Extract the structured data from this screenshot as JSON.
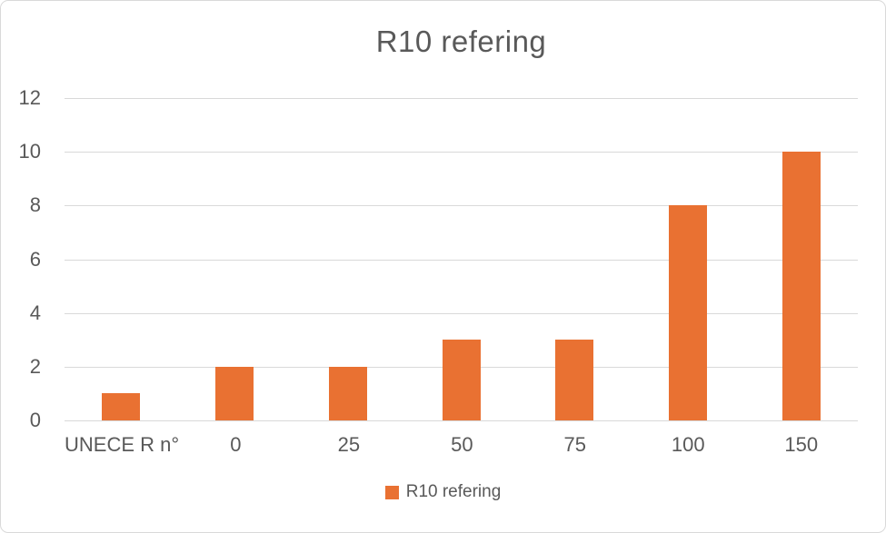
{
  "chart_data": {
    "type": "bar",
    "title": "R10 refering",
    "categories": [
      "UNECE R n°",
      "0",
      "25",
      "50",
      "75",
      "100",
      "150"
    ],
    "values": [
      1,
      2,
      2,
      3,
      3,
      8,
      10
    ],
    "xlabel": "",
    "ylabel": "",
    "ylim": [
      0,
      12
    ],
    "yticks": [
      0,
      2,
      4,
      6,
      8,
      10,
      12
    ],
    "grid": true,
    "legend": [
      "R10 refering"
    ],
    "legend_position": "bottom",
    "colors": {
      "bar": "#E97132",
      "text": "#595959",
      "gridline": "#D9D9D9",
      "border": "#D9D9D9",
      "background": "#FFFFFF"
    }
  }
}
